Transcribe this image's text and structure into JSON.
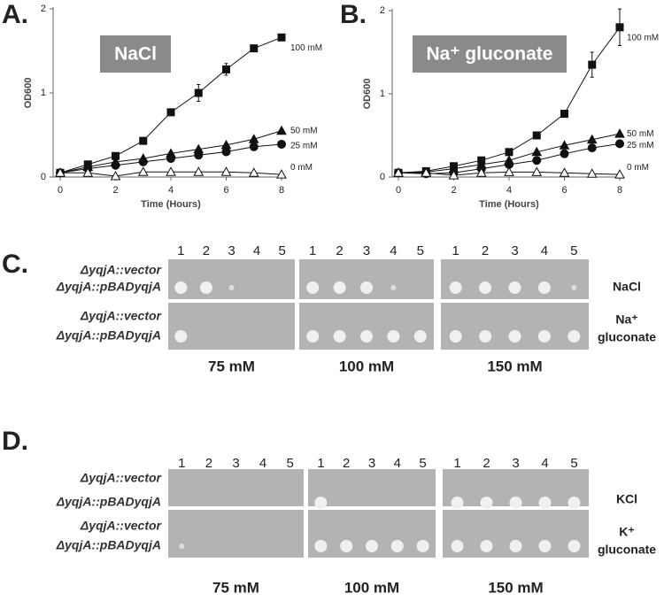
{
  "chart_data": [
    {
      "type": "line",
      "label": "A.",
      "title": "NaCl",
      "xlabel": "Time (Hours)",
      "ylabel": "OD600",
      "x": [
        0,
        1,
        2,
        3,
        4,
        5,
        6,
        7,
        8
      ],
      "xlim": [
        0,
        8
      ],
      "xticks": [
        0,
        2,
        4,
        6,
        8
      ],
      "ylim": [
        0,
        2
      ],
      "yticks": [
        0,
        1,
        2
      ],
      "series": [
        {
          "name": "100 mM",
          "color": "#111111",
          "marker": "square",
          "values": [
            0.05,
            0.15,
            0.25,
            0.43,
            0.77,
            1.0,
            1.28,
            1.53,
            1.66
          ],
          "errors": [
            0,
            0,
            0,
            0,
            0.03,
            0.1,
            0.07,
            0,
            0
          ]
        },
        {
          "name": "50 mM",
          "color": "#111111",
          "marker": "triangle",
          "values": [
            0.05,
            0.12,
            0.18,
            0.22,
            0.28,
            0.33,
            0.38,
            0.45,
            0.55
          ]
        },
        {
          "name": "25 mM",
          "color": "#111111",
          "marker": "circle",
          "values": [
            0.05,
            0.1,
            0.14,
            0.18,
            0.22,
            0.26,
            0.3,
            0.36,
            0.39
          ]
        },
        {
          "name": "0 mM",
          "color": "#111111",
          "marker": "open-triangle",
          "values": [
            0.05,
            0.05,
            0.01,
            0.06,
            0.06,
            0.06,
            0.06,
            0.05,
            0.03
          ]
        }
      ]
    },
    {
      "type": "line",
      "label": "B.",
      "title": "Na⁺ gluconate",
      "xlabel": "Time (Hours)",
      "ylabel": "OD600",
      "x": [
        0,
        1,
        2,
        3,
        4,
        5,
        6,
        7,
        8
      ],
      "xlim": [
        0,
        8
      ],
      "xticks": [
        0,
        2,
        4,
        6,
        8
      ],
      "ylim": [
        0,
        2
      ],
      "yticks": [
        0,
        1,
        2
      ],
      "series": [
        {
          "name": "100 mM",
          "color": "#111111",
          "marker": "square",
          "values": [
            0.05,
            0.07,
            0.13,
            0.2,
            0.3,
            0.5,
            0.76,
            1.35,
            1.8
          ],
          "errors": [
            0,
            0,
            0,
            0,
            0,
            0.03,
            0,
            0.15,
            0.22
          ]
        },
        {
          "name": "50 mM",
          "color": "#111111",
          "marker": "triangle",
          "values": [
            0.05,
            0.06,
            0.1,
            0.15,
            0.2,
            0.3,
            0.38,
            0.45,
            0.52
          ]
        },
        {
          "name": "25 mM",
          "color": "#111111",
          "marker": "circle",
          "values": [
            0.05,
            0.04,
            0.05,
            0.1,
            0.15,
            0.2,
            0.28,
            0.35,
            0.4
          ]
        },
        {
          "name": "0 mM",
          "color": "#111111",
          "marker": "open-triangle",
          "values": [
            0.05,
            0.05,
            0.02,
            0.05,
            0.06,
            0.06,
            0.05,
            0.04,
            0.03
          ]
        }
      ]
    }
  ],
  "panels": [
    {
      "label": "C.",
      "columns": [
        "1",
        "2",
        "3",
        "4",
        "5"
      ],
      "strains": [
        "ΔyqjA::vector",
        "ΔyqjA::pBADyqjA"
      ],
      "concentrations": [
        "75 mM",
        "100 mM",
        "150 mM"
      ],
      "conditions": [
        [
          "NaCl"
        ],
        [
          "Na⁺",
          "gluconate"
        ]
      ]
    },
    {
      "label": "D.",
      "columns": [
        "1",
        "2",
        "3",
        "4",
        "5"
      ],
      "strains": [
        "ΔyqjA::vector",
        "ΔyqjA::pBADyqjA"
      ],
      "concentrations": [
        "75 mM",
        "100 mM",
        "150 mM"
      ],
      "conditions": [
        [
          "KCl"
        ],
        [
          "K⁺",
          "gluconate"
        ]
      ]
    }
  ]
}
